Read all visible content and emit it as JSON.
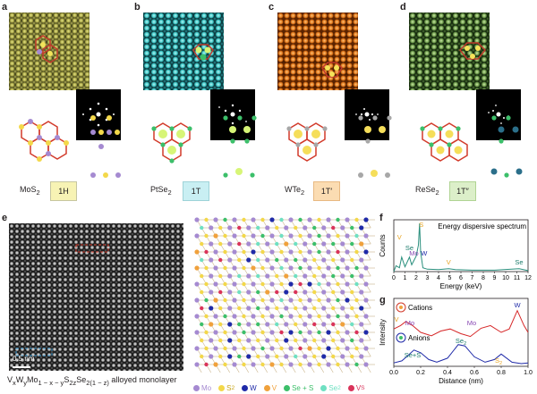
{
  "panels": {
    "a": {
      "letter": "a",
      "formula_main": "MoS",
      "formula_sub": "2",
      "phase": "1H",
      "scale": "0.5 nm",
      "phase_bg": "#f7f3b4"
    },
    "b": {
      "letter": "b",
      "formula_main": "PtSe",
      "formula_sub": "2",
      "phase": "1T",
      "scale": "0.5 nm",
      "phase_bg": "#c9eff3"
    },
    "c": {
      "letter": "c",
      "formula_main": "WTe",
      "formula_sub": "2",
      "phase": "1T′",
      "scale": "0.5 nm",
      "phase_bg": "#fbdcb2"
    },
    "d": {
      "letter": "d",
      "formula_main": "ReSe",
      "formula_sub": "2",
      "phase": "1T″",
      "scale": "0.5 nm",
      "phase_bg": "#dcefc9"
    }
  },
  "panel_e": {
    "letter": "e",
    "scale": "0.5 nm",
    "caption_html": "V<sub>x</sub>W<sub>y</sub>Mo<sub>1 − x − y</sub>S<sub>2z</sub>Se<sub>2(1 − z)</sub> alloyed monolayer",
    "legend": [
      {
        "label": "Mo",
        "color": "#a58ad1"
      },
      {
        "label": "S",
        "sub": "2",
        "color": "#f3d84a"
      },
      {
        "label": "W",
        "color": "#1f2aa8"
      },
      {
        "label": "V",
        "color": "#f0a13c"
      },
      {
        "label": "Se + S",
        "color": "#3cbf6a"
      },
      {
        "label": "Se",
        "sub": "2",
        "color": "#6fe0c2"
      },
      {
        "label": "V",
        "sub": "S",
        "color": "#d9335a"
      }
    ]
  },
  "panel_f": {
    "letter": "f",
    "title": "Energy dispersive spectrum",
    "ylabel": "Counts",
    "xlabel": "Energy (keV)",
    "peak_labels": [
      {
        "text": "S",
        "color": "#e8a524"
      },
      {
        "text": "V",
        "color": "#e8a524"
      },
      {
        "text": "Se",
        "color": "#1a7a6a"
      },
      {
        "text": "Mo",
        "color": "#8a4bb4"
      },
      {
        "text": "W",
        "color": "#1f2aa8"
      },
      {
        "text": "V",
        "color": "#e8a524"
      },
      {
        "text": "Se",
        "color": "#1a7a6a"
      }
    ],
    "chart_data": {
      "type": "line",
      "x": [
        0,
        0.2,
        0.5,
        0.7,
        1.0,
        1.4,
        1.6,
        2.0,
        2.2,
        2.3,
        2.4,
        2.6,
        3.0,
        4.0,
        4.9,
        5.5,
        7.0,
        9.0,
        11.2,
        12
      ],
      "values": [
        0,
        12,
        8,
        30,
        10,
        30,
        14,
        32,
        55,
        100,
        40,
        8,
        5,
        4,
        6,
        4,
        3,
        3,
        6,
        2
      ],
      "xlim": [
        0,
        12
      ],
      "xticks": [
        "0",
        "1",
        "2",
        "3",
        "4",
        "5",
        "6",
        "7",
        "8",
        "9",
        "10",
        "11",
        "12"
      ]
    }
  },
  "panel_g": {
    "letter": "g",
    "ylabel": "Intensity",
    "xlabel": "Distance (nm)",
    "cations_label": "Cations",
    "anions_label": "Anions",
    "peak_labels": [
      {
        "text": "V",
        "color": "#e8a524"
      },
      {
        "text": "Mo",
        "color": "#8a4bb4"
      },
      {
        "text": "Mo",
        "color": "#8a4bb4"
      },
      {
        "text": "W",
        "color": "#1f2aa8"
      },
      {
        "text": "Se+S",
        "color": "#1a7a6a"
      },
      {
        "text": "Se",
        "sub": "2",
        "color": "#1a7a6a"
      },
      {
        "text": "S",
        "sub": "2",
        "color": "#e8a524"
      }
    ],
    "chart_data": {
      "type": "line",
      "xlim": [
        0,
        1.0
      ],
      "xticks": [
        "0.0",
        "0.2",
        "0.4",
        "0.6",
        "0.8",
        "1.0"
      ],
      "series": [
        {
          "name": "Cations",
          "color": "#d62728",
          "x": [
            0,
            0.05,
            0.09,
            0.14,
            0.2,
            0.28,
            0.35,
            0.42,
            0.5,
            0.57,
            0.65,
            0.72,
            0.8,
            0.86,
            0.92,
            0.97,
            1.0
          ],
          "values": [
            0.55,
            0.6,
            0.66,
            0.6,
            0.5,
            0.45,
            0.52,
            0.55,
            0.48,
            0.44,
            0.56,
            0.6,
            0.5,
            0.55,
            0.82,
            0.6,
            0.5
          ]
        },
        {
          "name": "Anions",
          "color": "#1f2aa8",
          "x": [
            0,
            0.06,
            0.1,
            0.15,
            0.2,
            0.26,
            0.32,
            0.4,
            0.48,
            0.53,
            0.6,
            0.68,
            0.75,
            0.8,
            0.88,
            0.95,
            1.0
          ],
          "values": [
            0.05,
            0.08,
            0.15,
            0.24,
            0.2,
            0.1,
            0.06,
            0.12,
            0.32,
            0.3,
            0.14,
            0.06,
            0.1,
            0.18,
            0.06,
            0.04,
            0.05
          ]
        }
      ]
    }
  }
}
